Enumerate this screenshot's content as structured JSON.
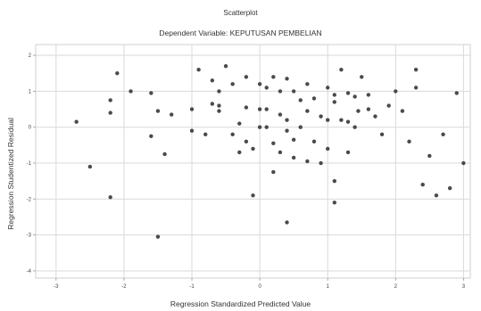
{
  "chart_data": {
    "type": "scatter",
    "title": "Scatterplot",
    "subtitle": "Dependent Variable: KEPUTUSAN PEMBELIAN",
    "xlabel": "Regression Standardized Predicted Value",
    "ylabel": "Regression Studentized Residual",
    "xlim": [
      -3.3,
      3.1
    ],
    "ylim": [
      -4.2,
      2.3
    ],
    "xticks": [
      -3,
      -2,
      -1,
      0,
      1,
      2,
      3
    ],
    "yticks": [
      -4,
      -3,
      -2,
      -1,
      0,
      1,
      2
    ],
    "grid": true,
    "colors": {
      "point": "#4a4a4a",
      "grid": "#d9d9d9",
      "frame": "#cfcfcf",
      "text": "#333333"
    },
    "points": [
      [
        -2.7,
        0.15
      ],
      [
        -2.5,
        -1.1
      ],
      [
        -2.2,
        0.75
      ],
      [
        -2.2,
        0.4
      ],
      [
        -2.2,
        -1.95
      ],
      [
        -2.1,
        1.5
      ],
      [
        -1.9,
        1.0
      ],
      [
        -1.6,
        -0.25
      ],
      [
        -1.5,
        0.45
      ],
      [
        -1.5,
        -3.05
      ],
      [
        -1.4,
        -0.75
      ],
      [
        -1.3,
        0.35
      ],
      [
        -1.0,
        0.5
      ],
      [
        -1.0,
        -0.1
      ],
      [
        -0.9,
        1.6
      ],
      [
        -0.8,
        -0.2
      ],
      [
        -0.7,
        1.3
      ],
      [
        -0.7,
        0.65
      ],
      [
        -0.6,
        1.0
      ],
      [
        -0.6,
        0.6
      ],
      [
        -0.6,
        0.45
      ],
      [
        -0.5,
        1.7
      ],
      [
        -0.4,
        1.2
      ],
      [
        -0.4,
        -0.2
      ],
      [
        -0.3,
        0.1
      ],
      [
        -0.3,
        -0.7
      ],
      [
        -0.2,
        0.55
      ],
      [
        -0.2,
        1.4
      ],
      [
        -0.2,
        -0.4
      ],
      [
        -0.1,
        -0.6
      ],
      [
        -0.1,
        -1.9
      ],
      [
        0.0,
        0.5
      ],
      [
        0.0,
        0.0
      ],
      [
        0.1,
        1.1
      ],
      [
        0.1,
        0.5
      ],
      [
        0.1,
        0.0
      ],
      [
        0.2,
        1.4
      ],
      [
        0.2,
        -0.45
      ],
      [
        0.3,
        1.0
      ],
      [
        0.3,
        0.35
      ],
      [
        0.3,
        -0.7
      ],
      [
        0.4,
        1.35
      ],
      [
        0.4,
        0.2
      ],
      [
        0.4,
        -0.1
      ],
      [
        0.5,
        1.0
      ],
      [
        0.5,
        -0.35
      ],
      [
        0.5,
        -0.85
      ],
      [
        0.6,
        0.75
      ],
      [
        0.6,
        0.0
      ],
      [
        0.7,
        1.2
      ],
      [
        0.7,
        0.45
      ],
      [
        0.7,
        -0.95
      ],
      [
        0.8,
        0.8
      ],
      [
        0.8,
        -0.4
      ],
      [
        0.9,
        0.3
      ],
      [
        0.9,
        -1.0
      ],
      [
        1.0,
        1.1
      ],
      [
        1.0,
        0.2
      ],
      [
        1.0,
        -0.6
      ],
      [
        1.1,
        0.9
      ],
      [
        1.1,
        0.7
      ],
      [
        1.1,
        -1.5
      ],
      [
        1.1,
        -2.1
      ],
      [
        1.2,
        1.6
      ],
      [
        1.2,
        0.2
      ],
      [
        1.3,
        0.95
      ],
      [
        1.3,
        0.15
      ],
      [
        1.3,
        -0.7
      ],
      [
        1.4,
        0.85
      ],
      [
        1.4,
        0.0
      ],
      [
        1.5,
        1.4
      ],
      [
        1.6,
        0.9
      ],
      [
        1.6,
        0.5
      ],
      [
        1.7,
        0.3
      ],
      [
        1.8,
        -0.2
      ],
      [
        1.9,
        0.6
      ],
      [
        2.0,
        1.0
      ],
      [
        2.1,
        0.45
      ],
      [
        2.2,
        -0.4
      ],
      [
        2.3,
        1.6
      ],
      [
        2.3,
        1.1
      ],
      [
        2.4,
        -1.6
      ],
      [
        2.5,
        -0.8
      ],
      [
        2.6,
        -1.9
      ],
      [
        2.7,
        -0.2
      ],
      [
        2.8,
        -1.7
      ],
      [
        2.9,
        0.95
      ],
      [
        3.0,
        -1.0
      ],
      [
        -1.6,
        0.95
      ],
      [
        0.2,
        -1.25
      ],
      [
        0.0,
        1.2
      ],
      [
        0.4,
        -2.65
      ],
      [
        1.45,
        0.45
      ]
    ]
  }
}
